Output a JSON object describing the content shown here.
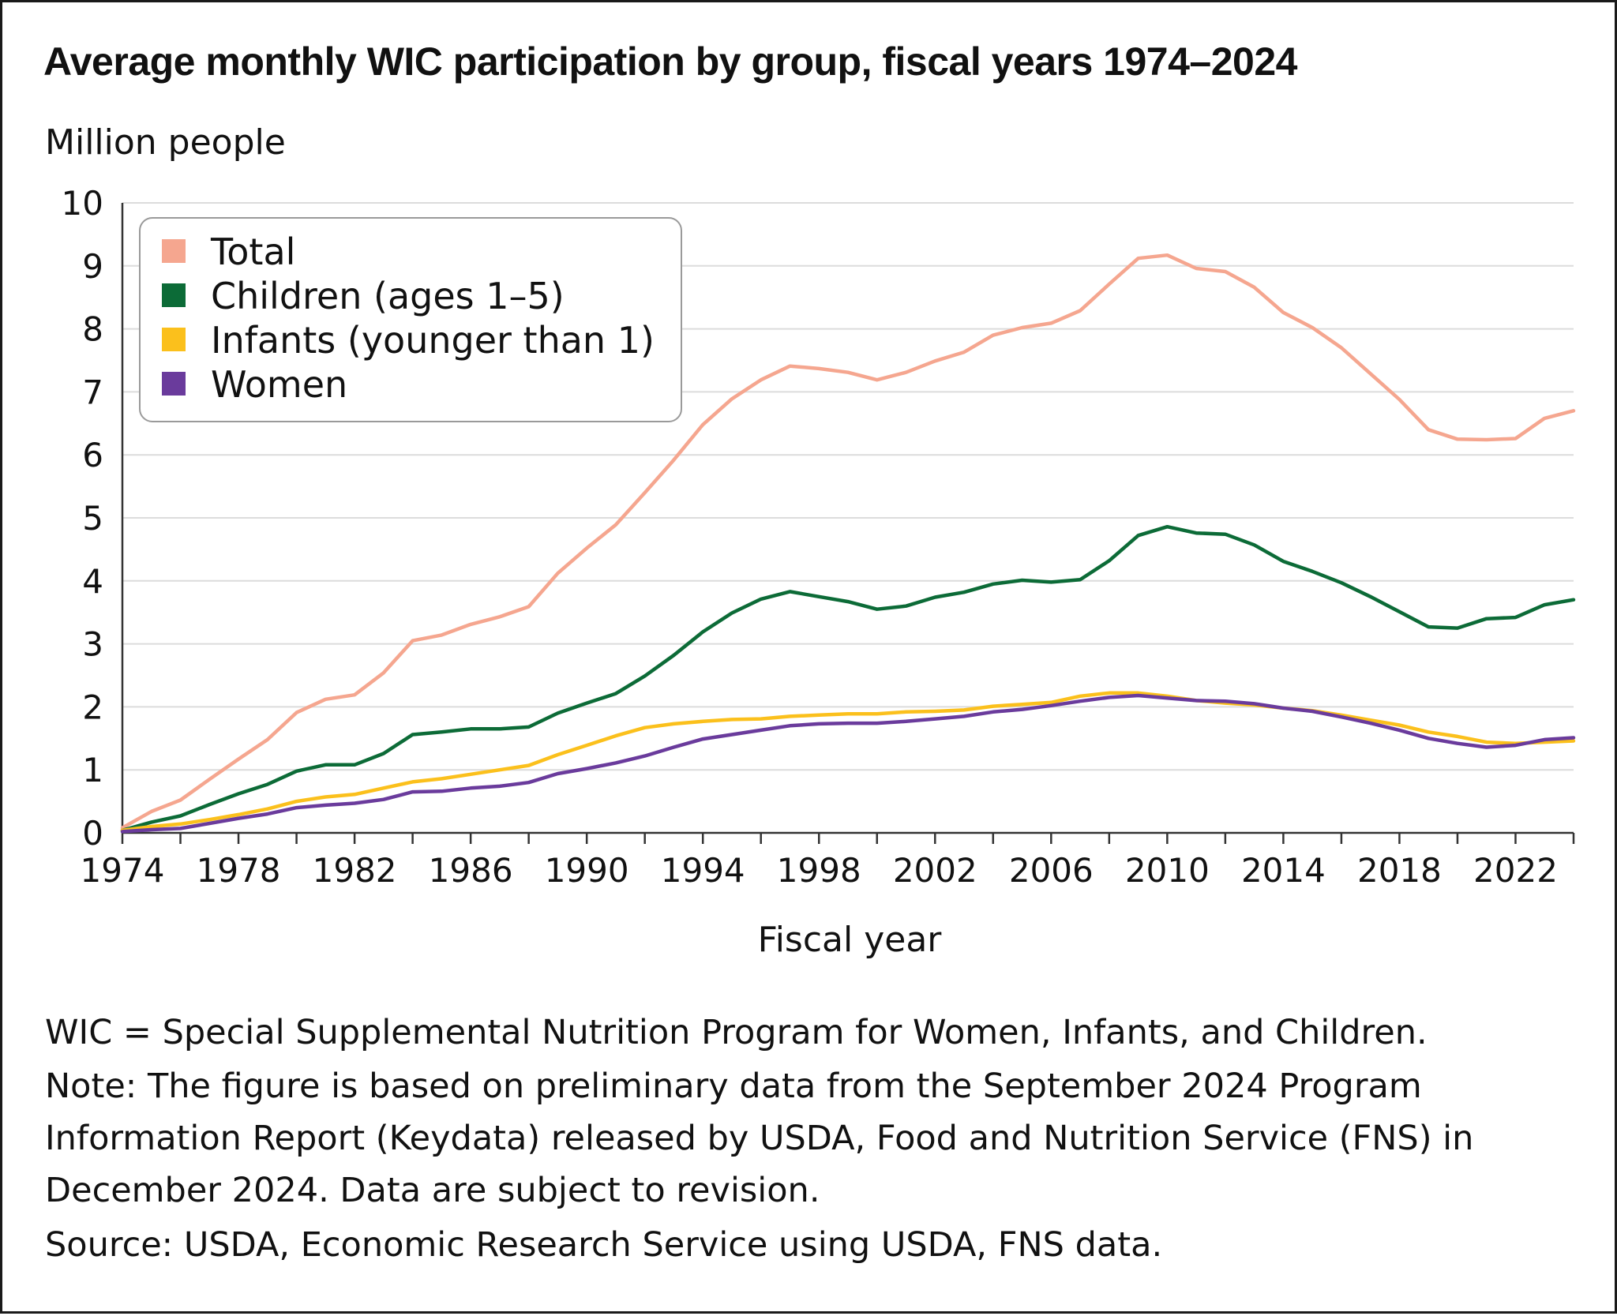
{
  "title": "Average monthly WIC participation by group, fiscal years 1974–2024",
  "footnotes": {
    "definition": "WIC = Special Supplemental Nutrition Program for Women, Infants, and Children.",
    "note": "Note: The figure is based on preliminary data from the September 2024 Program Information Report (Keydata) released by USDA, Food and Nutrition Service (FNS) in December 2024. Data are subject to revision.",
    "source": "Source: USDA, Economic Research Service using USDA, FNS data."
  },
  "chart_data": {
    "type": "line",
    "title": "Average monthly WIC participation by group, fiscal years 1974–2024",
    "ylabel": "Million people",
    "xlabel": "Fiscal year",
    "ylim": [
      0,
      10
    ],
    "xlim": [
      1974,
      2024
    ],
    "yticks": [
      "0",
      "1",
      "2",
      "3",
      "4",
      "5",
      "6",
      "7",
      "8",
      "9",
      "10"
    ],
    "xticks": [
      "1974",
      "1978",
      "1982",
      "1986",
      "1990",
      "1994",
      "1998",
      "2002",
      "2006",
      "2010",
      "2014",
      "2018",
      "2022"
    ],
    "grid": true,
    "legend_position": "top-left",
    "x": [
      1974,
      1975,
      1976,
      1977,
      1978,
      1979,
      1980,
      1981,
      1982,
      1983,
      1984,
      1985,
      1986,
      1987,
      1988,
      1989,
      1990,
      1991,
      1992,
      1993,
      1994,
      1995,
      1996,
      1997,
      1998,
      1999,
      2000,
      2001,
      2002,
      2003,
      2004,
      2005,
      2006,
      2007,
      2008,
      2009,
      2010,
      2011,
      2012,
      2013,
      2014,
      2015,
      2016,
      2017,
      2018,
      2019,
      2020,
      2021,
      2022,
      2023,
      2024
    ],
    "series": [
      {
        "name": "Total",
        "color": "#f5a68f",
        "values": [
          0.08,
          0.34,
          0.52,
          0.85,
          1.17,
          1.48,
          1.91,
          2.12,
          2.19,
          2.54,
          3.05,
          3.14,
          3.31,
          3.43,
          3.59,
          4.12,
          4.52,
          4.89,
          5.4,
          5.92,
          6.48,
          6.89,
          7.19,
          7.41,
          7.37,
          7.31,
          7.19,
          7.31,
          7.49,
          7.63,
          7.9,
          8.02,
          8.09,
          8.29,
          8.71,
          9.12,
          9.17,
          8.96,
          8.91,
          8.66,
          8.26,
          8.02,
          7.7,
          7.29,
          6.88,
          6.4,
          6.25,
          6.24,
          6.26,
          6.58,
          6.7
        ]
      },
      {
        "name": "Children (ages 1–5)",
        "color": "#0c6b37",
        "values": [
          0.04,
          0.17,
          0.27,
          0.45,
          0.62,
          0.77,
          0.98,
          1.08,
          1.08,
          1.26,
          1.56,
          1.6,
          1.65,
          1.65,
          1.68,
          1.9,
          2.06,
          2.21,
          2.49,
          2.82,
          3.19,
          3.49,
          3.71,
          3.83,
          3.75,
          3.67,
          3.55,
          3.6,
          3.74,
          3.82,
          3.95,
          4.01,
          3.98,
          4.02,
          4.32,
          4.72,
          4.86,
          4.76,
          4.74,
          4.57,
          4.31,
          4.15,
          3.97,
          3.75,
          3.51,
          3.27,
          3.25,
          3.4,
          3.42,
          3.62,
          3.7
        ]
      },
      {
        "name": "Infants (younger than 1)",
        "color": "#fbc01c",
        "values": [
          0.04,
          0.1,
          0.14,
          0.21,
          0.29,
          0.38,
          0.5,
          0.57,
          0.61,
          0.71,
          0.81,
          0.86,
          0.93,
          1.0,
          1.07,
          1.24,
          1.39,
          1.54,
          1.67,
          1.73,
          1.77,
          1.8,
          1.81,
          1.85,
          1.87,
          1.89,
          1.89,
          1.92,
          1.93,
          1.95,
          2.01,
          2.04,
          2.07,
          2.17,
          2.22,
          2.22,
          2.17,
          2.1,
          2.06,
          2.03,
          1.98,
          1.94,
          1.87,
          1.79,
          1.71,
          1.6,
          1.53,
          1.44,
          1.42,
          1.44,
          1.46
        ]
      },
      {
        "name": "Women",
        "color": "#6a3b9c",
        "values": [
          0.02,
          0.05,
          0.07,
          0.15,
          0.23,
          0.3,
          0.4,
          0.44,
          0.47,
          0.53,
          0.65,
          0.66,
          0.71,
          0.74,
          0.8,
          0.94,
          1.02,
          1.11,
          1.22,
          1.36,
          1.49,
          1.56,
          1.63,
          1.7,
          1.73,
          1.74,
          1.74,
          1.77,
          1.81,
          1.85,
          1.92,
          1.96,
          2.02,
          2.09,
          2.15,
          2.18,
          2.14,
          2.1,
          2.09,
          2.05,
          1.98,
          1.93,
          1.84,
          1.74,
          1.63,
          1.5,
          1.42,
          1.36,
          1.39,
          1.48,
          1.51
        ]
      }
    ]
  }
}
